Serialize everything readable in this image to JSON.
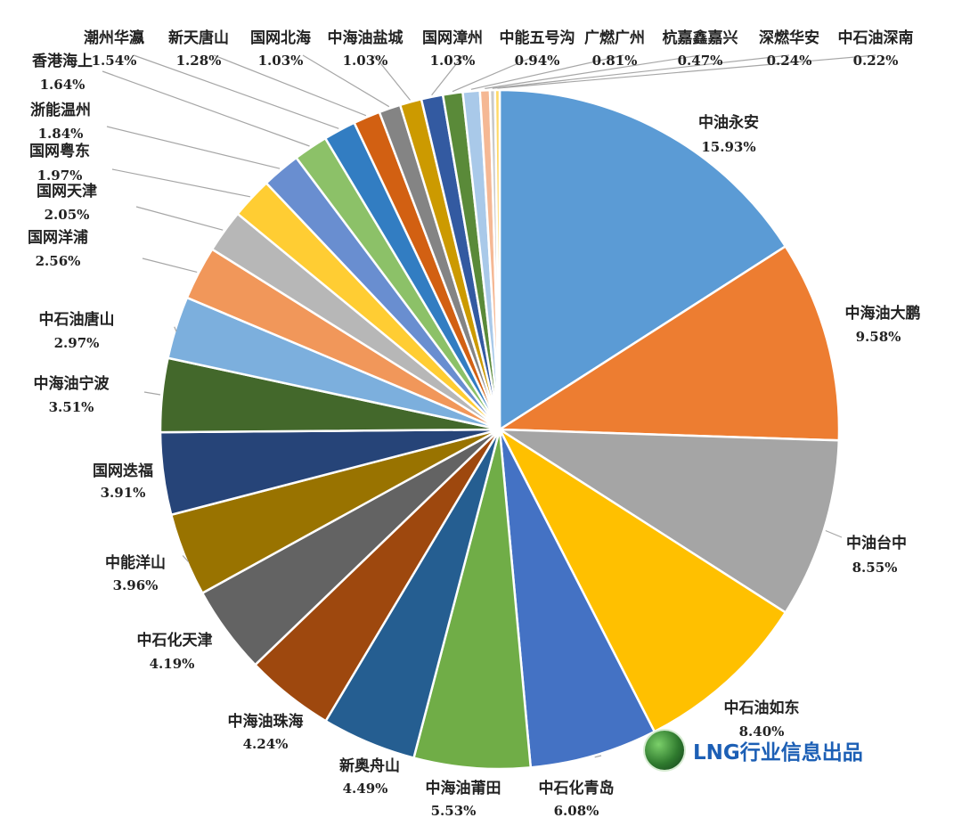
{
  "chart_data": {
    "type": "pie",
    "title": "",
    "slices": [
      {
        "name": "中油永安",
        "value": 15.93,
        "label": "15.93%",
        "color": "#5B9BD5"
      },
      {
        "name": "中海油大鹏",
        "value": 9.58,
        "label": "9.58%",
        "color": "#ED7D31"
      },
      {
        "name": "中油台中",
        "value": 8.55,
        "label": "8.55%",
        "color": "#A5A5A5"
      },
      {
        "name": "中石油如东",
        "value": 8.4,
        "label": "8.40%",
        "color": "#FFC000"
      },
      {
        "name": "中石化青岛",
        "value": 6.08,
        "label": "6.08%",
        "color": "#4472C4"
      },
      {
        "name": "中海油莆田",
        "value": 5.53,
        "label": "5.53%",
        "color": "#70AD47"
      },
      {
        "name": "新奥舟山",
        "value": 4.49,
        "label": "4.49%",
        "color": "#255E91"
      },
      {
        "name": "中海油珠海",
        "value": 4.24,
        "label": "4.24%",
        "color": "#9E480E"
      },
      {
        "name": "中石化天津",
        "value": 4.19,
        "label": "4.19%",
        "color": "#636363"
      },
      {
        "name": "中能洋山",
        "value": 3.96,
        "label": "3.96%",
        "color": "#997300"
      },
      {
        "name": "国网迭福",
        "value": 3.91,
        "label": "3.91%",
        "color": "#264478"
      },
      {
        "name": "中海油宁波",
        "value": 3.51,
        "label": "3.51%",
        "color": "#43682B"
      },
      {
        "name": "中石油唐山",
        "value": 2.97,
        "label": "2.97%",
        "color": "#7CAFDD"
      },
      {
        "name": "国网洋浦",
        "value": 2.56,
        "label": "2.56%",
        "color": "#F1975A"
      },
      {
        "name": "国网天津",
        "value": 2.05,
        "label": "2.05%",
        "color": "#B7B7B7"
      },
      {
        "name": "国网粤东",
        "value": 1.97,
        "label": "1.97%",
        "color": "#FFCD33"
      },
      {
        "name": "浙能温州",
        "value": 1.84,
        "label": "1.84%",
        "color": "#698ED0"
      },
      {
        "name": "香港海上",
        "value": 1.64,
        "label": "1.64%",
        "color": "#8CC168"
      },
      {
        "name": "潮州华瀛",
        "value": 1.54,
        "label": "1.54%",
        "color": "#327DC2"
      },
      {
        "name": "新天唐山",
        "value": 1.28,
        "label": "1.28%",
        "color": "#D26012"
      },
      {
        "name": "国网北海",
        "value": 1.03,
        "label": "1.03%",
        "color": "#848484"
      },
      {
        "name": "中海油盐城",
        "value": 1.03,
        "label": "1.03%",
        "color": "#CC9A00"
      },
      {
        "name": "国网漳州",
        "value": 1.03,
        "label": "1.03%",
        "color": "#335AA1"
      },
      {
        "name": "中能五号沟",
        "value": 0.94,
        "label": "0.94%",
        "color": "#5A8A39"
      },
      {
        "name": "广燃广州",
        "value": 0.81,
        "label": "0.81%",
        "color": "#A9C9E9"
      },
      {
        "name": "杭嘉鑫嘉兴",
        "value": 0.47,
        "label": "0.47%",
        "color": "#F5B894"
      },
      {
        "name": "深燃华安",
        "value": 0.24,
        "label": "0.24%",
        "color": "#C9C9C9"
      },
      {
        "name": "中石油深南",
        "value": 0.22,
        "label": "0.22%",
        "color": "#FFD966"
      }
    ]
  },
  "watermark": {
    "text": "LNG行业信息出品",
    "icon": "globe-logo-icon"
  }
}
